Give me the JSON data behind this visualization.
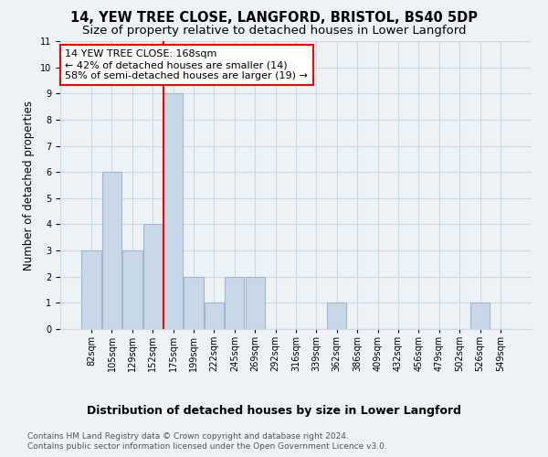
{
  "title": "14, YEW TREE CLOSE, LANGFORD, BRISTOL, BS40 5DP",
  "subtitle": "Size of property relative to detached houses in Lower Langford",
  "xlabel": "Distribution of detached houses by size in Lower Langford",
  "ylabel": "Number of detached properties",
  "bin_labels": [
    "82sqm",
    "105sqm",
    "129sqm",
    "152sqm",
    "175sqm",
    "199sqm",
    "222sqm",
    "245sqm",
    "269sqm",
    "292sqm",
    "316sqm",
    "339sqm",
    "362sqm",
    "386sqm",
    "409sqm",
    "432sqm",
    "456sqm",
    "479sqm",
    "502sqm",
    "526sqm",
    "549sqm"
  ],
  "bar_heights": [
    3,
    6,
    3,
    4,
    9,
    2,
    1,
    2,
    2,
    0,
    0,
    0,
    1,
    0,
    0,
    0,
    0,
    0,
    0,
    1,
    0
  ],
  "bar_color": "#c8d8e8",
  "bar_edgecolor": "#a0b8cc",
  "bar_linewidth": 0.8,
  "vline_bin_index": 4,
  "vline_color": "red",
  "vline_linewidth": 1.5,
  "annotation_text": "14 YEW TREE CLOSE: 168sqm\n← 42% of detached houses are smaller (14)\n58% of semi-detached houses are larger (19) →",
  "annotation_box_color": "white",
  "annotation_box_edgecolor": "red",
  "ylim": [
    0,
    11
  ],
  "yticks": [
    0,
    1,
    2,
    3,
    4,
    5,
    6,
    7,
    8,
    9,
    10,
    11
  ],
  "grid_color": "#d0d8e0",
  "background_color": "#edf2f7",
  "footer_line1": "Contains HM Land Registry data © Crown copyright and database right 2024.",
  "footer_line2": "Contains public sector information licensed under the Open Government Licence v3.0.",
  "title_fontsize": 10.5,
  "subtitle_fontsize": 9.5,
  "xlabel_fontsize": 9,
  "ylabel_fontsize": 8.5,
  "tick_fontsize": 7,
  "annotation_fontsize": 8,
  "footer_fontsize": 6.5
}
